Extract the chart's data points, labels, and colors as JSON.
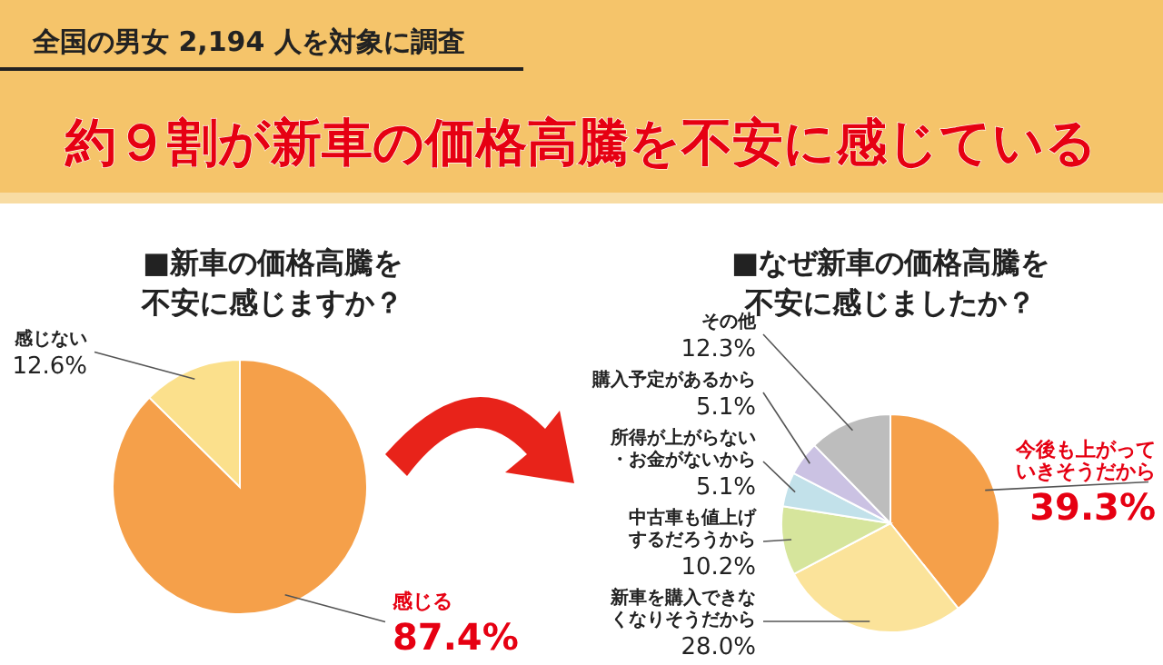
{
  "chart_data": [
    {
      "type": "pie",
      "title": "■新車の価格高騰を不安に感じますか？",
      "categories": [
        "感じる",
        "感じない"
      ],
      "values": [
        87.4,
        12.6
      ],
      "colors": [
        "#f5a04a",
        "#fbe08c"
      ],
      "value_labels": [
        "87.4%",
        "12.6%"
      ],
      "annotations": [
        "全国の男女 2,194 人を対象に調査",
        "約９割が新車の価格高騰を不安に感じている"
      ]
    },
    {
      "type": "pie",
      "title": "■なぜ新車の価格高騰を不安に感じましたか？",
      "categories": [
        "今後も上がっていきそうだから",
        "新車を購入できなくなりそうだから",
        "中古車も値上げするだろうから",
        "所得が上がらない・お金がないから",
        "購入予定があるから",
        "その他"
      ],
      "values": [
        39.3,
        28.0,
        10.2,
        5.1,
        5.1,
        12.3
      ],
      "colors": [
        "#f5a04a",
        "#fbe39a",
        "#d6e59c",
        "#c2e1ea",
        "#cbc2e3",
        "#bdbdbd"
      ],
      "value_labels": [
        "39.3%",
        "28.0%",
        "10.2%",
        "5.1%",
        "5.1%",
        "12.3%"
      ]
    }
  ]
}
